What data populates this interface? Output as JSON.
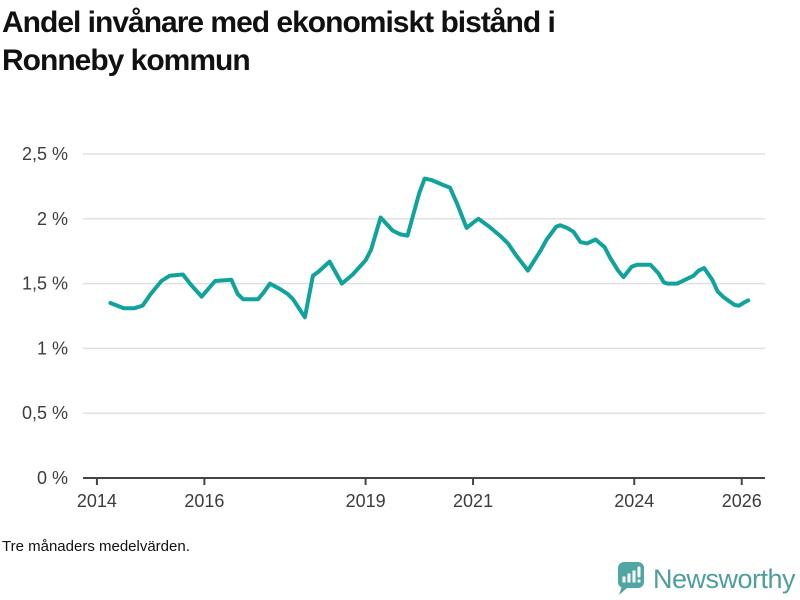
{
  "title": "Andel invånare med ekonomiskt bistånd i Ronneby kommun",
  "title_lines": [
    "Andel invånare med ekonomiskt bistånd i",
    "Ronneby kommun"
  ],
  "footnote": "Tre månaders medelvärden.",
  "branding": {
    "name": "Newsworthy",
    "icon": "speech-bubble-with-bar-chart-and-exclamation",
    "icon_color": "#4FA6A3",
    "text_color": "#4F9D9E"
  },
  "colors": {
    "line": "#10A39C",
    "grid": "#E0E0E0",
    "axis": "#444444",
    "tick_label": "#3C3C3C",
    "title": "#111111"
  },
  "chart_data": {
    "type": "line",
    "title": "Andel invånare med ekonomiskt bistånd i Ronneby kommun",
    "xlabel": "",
    "ylabel": "",
    "unit": "%",
    "grid": true,
    "legend": "none",
    "xlim": [
      2013.741,
      2026.433
    ],
    "ylim": [
      0,
      2.5
    ],
    "x_ticks": [
      {
        "value": 2014,
        "label": "2014"
      },
      {
        "value": 2016,
        "label": "2016"
      },
      {
        "value": 2019,
        "label": "2019"
      },
      {
        "value": 2021,
        "label": "2021"
      },
      {
        "value": 2024,
        "label": "2024"
      },
      {
        "value": 2026,
        "label": "2026"
      }
    ],
    "y_ticks": [
      {
        "value": 0,
        "label": "0 %"
      },
      {
        "value": 0.5,
        "label": "0,5 %"
      },
      {
        "value": 1,
        "label": "1 %"
      },
      {
        "value": 1.5,
        "label": "1,5 %"
      },
      {
        "value": 2,
        "label": "2 %"
      },
      {
        "value": 2.5,
        "label": "2,5 %"
      }
    ],
    "series": [
      {
        "name": "Andel invånare med ekonomiskt bistånd (%)",
        "color": "#10A39C",
        "x": [
          2014.25,
          2014.5,
          2014.7,
          2014.85,
          2015.0,
          2015.2,
          2015.35,
          2015.6,
          2015.75,
          2015.95,
          2016.2,
          2016.5,
          2016.62,
          2016.72,
          2017.0,
          2017.1,
          2017.22,
          2017.4,
          2017.55,
          2017.65,
          2017.87,
          2018.02,
          2018.12,
          2018.33,
          2018.56,
          2018.76,
          2019.0,
          2019.1,
          2019.28,
          2019.5,
          2019.65,
          2019.78,
          2020.0,
          2020.1,
          2020.22,
          2020.45,
          2020.57,
          2020.7,
          2020.88,
          2021.0,
          2021.1,
          2021.3,
          2021.5,
          2021.65,
          2021.78,
          2022.02,
          2022.25,
          2022.37,
          2022.55,
          2022.62,
          2022.75,
          2022.87,
          2023.0,
          2023.12,
          2023.28,
          2023.45,
          2023.55,
          2023.7,
          2023.8,
          2023.95,
          2024.05,
          2024.3,
          2024.45,
          2024.55,
          2024.62,
          2024.8,
          2024.95,
          2025.1,
          2025.2,
          2025.3,
          2025.45,
          2025.55,
          2025.65,
          2025.78,
          2025.87,
          2025.95,
          2026.05,
          2026.12
        ],
        "values": [
          1.35,
          1.31,
          1.31,
          1.33,
          1.42,
          1.52,
          1.56,
          1.57,
          1.49,
          1.4,
          1.52,
          1.53,
          1.42,
          1.38,
          1.38,
          1.43,
          1.5,
          1.46,
          1.42,
          1.38,
          1.24,
          1.56,
          1.59,
          1.67,
          1.5,
          1.57,
          1.68,
          1.76,
          2.01,
          1.91,
          1.88,
          1.87,
          2.2,
          2.31,
          2.3,
          2.26,
          2.24,
          2.12,
          1.93,
          1.97,
          2.0,
          1.94,
          1.87,
          1.81,
          1.73,
          1.6,
          1.75,
          1.84,
          1.94,
          1.95,
          1.93,
          1.9,
          1.82,
          1.81,
          1.84,
          1.78,
          1.7,
          1.6,
          1.55,
          1.63,
          1.645,
          1.645,
          1.58,
          1.51,
          1.5,
          1.5,
          1.53,
          1.56,
          1.6,
          1.62,
          1.53,
          1.44,
          1.4,
          1.36,
          1.335,
          1.33,
          1.355,
          1.37
        ]
      }
    ]
  }
}
